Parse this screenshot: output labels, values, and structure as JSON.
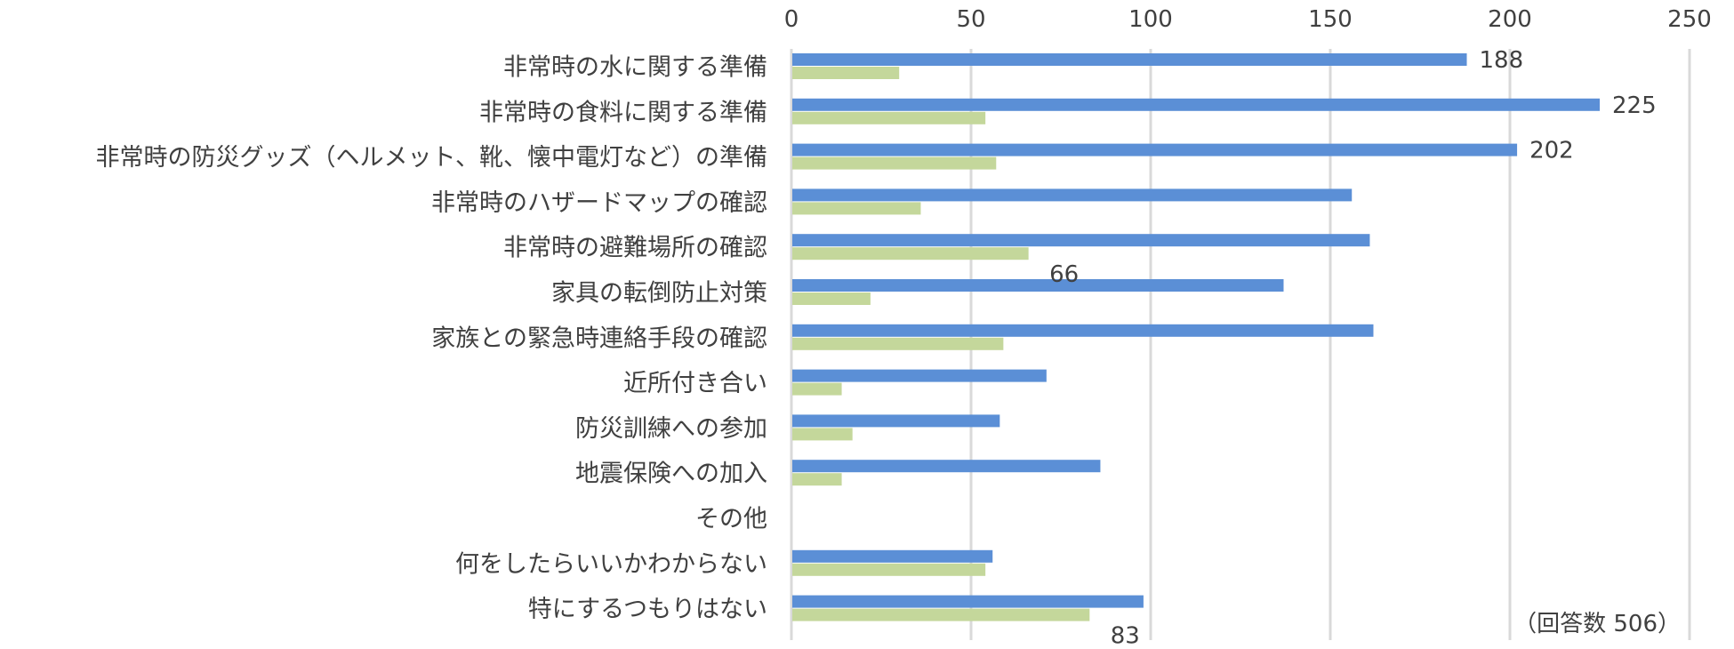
{
  "chart_data": {
    "type": "bar",
    "orientation": "horizontal",
    "categories": [
      "非常時の水に関する準備",
      "非常時の食料に関する準備",
      "非常時の防災グッズ（ヘルメット、靴、懐中電灯など）の準備",
      "非常時のハザードマップの確認",
      "非常時の避難場所の確認",
      "家具の転倒防止対策",
      "家族との緊急時連絡手段の確認",
      "近所付き合い",
      "防災訓練への参加",
      "地震保険への加入",
      "その他",
      "何をしたらいいかわからない",
      "特にするつもりはない"
    ],
    "series": [
      {
        "values": [
          188,
          225,
          202,
          156,
          161,
          137,
          162,
          71,
          58,
          86,
          0,
          56,
          98
        ],
        "color": "#5b8fd6",
        "labels": [
          "188",
          "225",
          "202",
          "",
          "",
          "",
          "",
          "",
          "",
          "",
          "",
          "",
          ""
        ]
      },
      {
        "values": [
          30,
          54,
          57,
          36,
          66,
          22,
          59,
          14,
          17,
          14,
          0,
          54,
          83
        ],
        "color": "#c4d79b",
        "labels": [
          "",
          "",
          "",
          "",
          "66",
          "",
          "",
          "",
          "",
          "",
          "",
          "",
          "83"
        ]
      }
    ],
    "xlim": [
      0,
      250
    ],
    "xticks": [
      0,
      50,
      100,
      150,
      200,
      250
    ],
    "grid": true,
    "axis_position": "top",
    "note": "（回答数 506）"
  }
}
